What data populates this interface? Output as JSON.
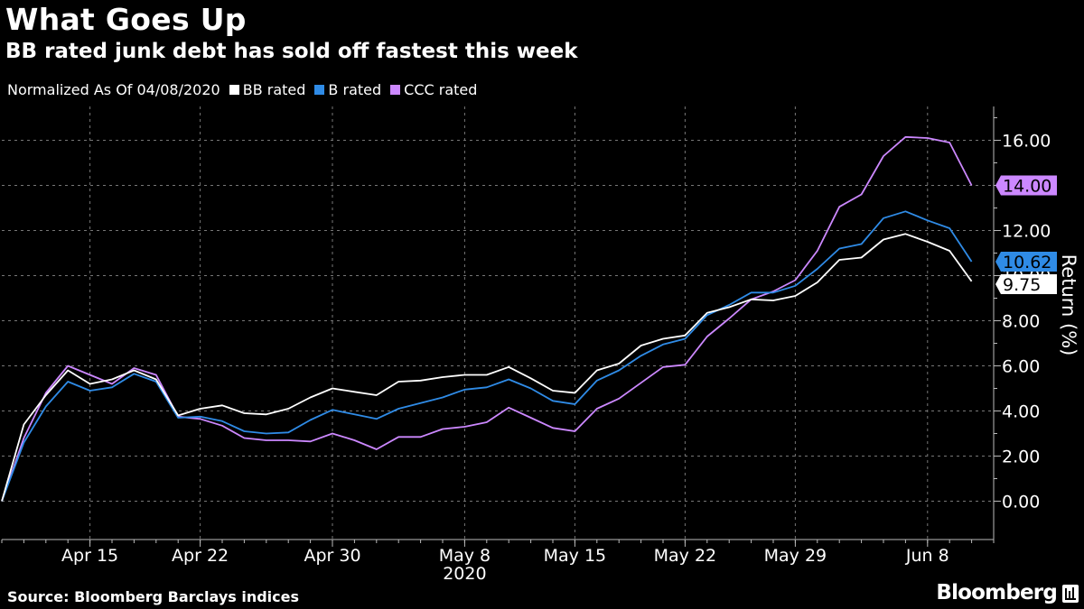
{
  "title": "What Goes Up",
  "subtitle": "BB rated junk debt has sold off fastest this week",
  "legend": {
    "note": "Normalized As Of 04/08/2020",
    "items": [
      {
        "label": "BB rated",
        "color": "#ffffff"
      },
      {
        "label": "B rated",
        "color": "#2f8be6"
      },
      {
        "label": "CCC rated",
        "color": "#cc88ff"
      }
    ]
  },
  "source": "Source: Bloomberg Barclays indices",
  "logo": "Bloomberg",
  "chart_data": {
    "type": "line",
    "title": "What Goes Up",
    "ylabel": "Return (%)",
    "xlabel": "2020",
    "ylim": [
      -1.7,
      17.5
    ],
    "yticks": [
      0,
      2,
      4,
      6,
      8,
      10,
      12,
      14,
      16
    ],
    "ytick_labels": [
      "0.00",
      "2.00",
      "4.00",
      "6.00",
      "8.00",
      "10.00",
      "12.00",
      "14.00",
      "16.00"
    ],
    "x_index_range": [
      0,
      45
    ],
    "xticks": [
      {
        "index": 4,
        "label": "Apr 15"
      },
      {
        "index": 9,
        "label": "Apr 22"
      },
      {
        "index": 15,
        "label": "Apr 30"
      },
      {
        "index": 21,
        "label": "May 8"
      },
      {
        "index": 26,
        "label": "May 15"
      },
      {
        "index": 31,
        "label": "May 22"
      },
      {
        "index": 36,
        "label": "May 29"
      },
      {
        "index": 42,
        "label": "Jun 8"
      }
    ],
    "x_year_label": "2020",
    "series": [
      {
        "name": "BB rated",
        "color": "#ffffff",
        "values": [
          0.0,
          3.4,
          4.7,
          5.8,
          5.2,
          5.4,
          5.8,
          5.4,
          3.8,
          4.1,
          4.25,
          3.9,
          3.85,
          4.1,
          4.6,
          5.0,
          4.85,
          4.7,
          5.3,
          5.35,
          5.5,
          5.6,
          5.6,
          5.95,
          5.45,
          4.9,
          4.8,
          5.8,
          6.1,
          6.9,
          7.2,
          7.35,
          8.35,
          8.6,
          8.95,
          8.9,
          9.1,
          9.7,
          10.7,
          10.8,
          11.6,
          11.85,
          11.5,
          11.1,
          9.75
        ],
        "end_label": "9.75"
      },
      {
        "name": "B rated",
        "color": "#2f8be6",
        "values": [
          0.0,
          2.6,
          4.2,
          5.3,
          4.9,
          5.05,
          5.65,
          5.3,
          3.7,
          3.75,
          3.55,
          3.1,
          3.0,
          3.05,
          3.6,
          4.05,
          3.85,
          3.65,
          4.1,
          4.35,
          4.6,
          4.95,
          5.05,
          5.4,
          5.0,
          4.45,
          4.3,
          5.35,
          5.8,
          6.45,
          6.95,
          7.2,
          8.25,
          8.7,
          9.25,
          9.25,
          9.55,
          10.3,
          11.2,
          11.4,
          12.55,
          12.85,
          12.45,
          12.1,
          10.62
        ],
        "end_label": "10.62"
      },
      {
        "name": "CCC rated",
        "color": "#cc88ff",
        "values": [
          0.0,
          2.8,
          4.8,
          6.0,
          5.6,
          5.2,
          5.9,
          5.6,
          3.75,
          3.65,
          3.35,
          2.8,
          2.7,
          2.7,
          2.65,
          3.0,
          2.7,
          2.3,
          2.85,
          2.85,
          3.2,
          3.3,
          3.5,
          4.15,
          3.7,
          3.25,
          3.1,
          4.1,
          4.55,
          5.25,
          5.95,
          6.05,
          7.3,
          8.1,
          8.95,
          9.3,
          9.8,
          11.1,
          13.05,
          13.6,
          15.3,
          16.15,
          16.1,
          15.9,
          14.0
        ],
        "end_label": "14.00"
      }
    ]
  }
}
